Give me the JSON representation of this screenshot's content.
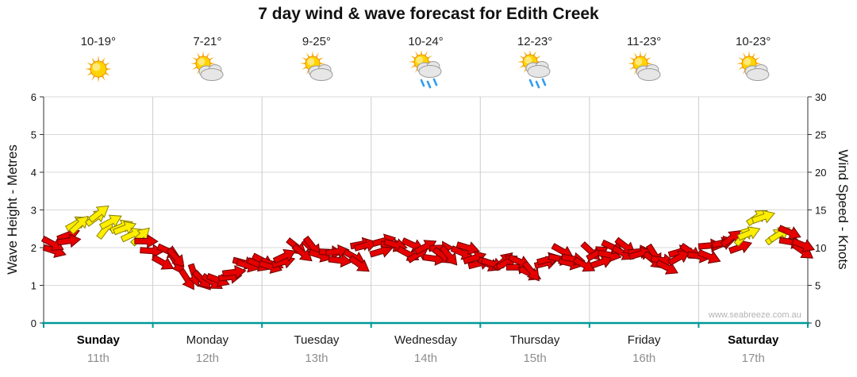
{
  "title": "7 day wind & wave forecast for Edith Creek",
  "watermark": "www.seabreeze.com.au",
  "axes": {
    "left": {
      "label": "Wave Height - Metres",
      "ticks": [
        0,
        1,
        2,
        3,
        4,
        5,
        6
      ]
    },
    "right": {
      "label": "Wind Speed - Knots",
      "ticks": [
        0,
        5,
        10,
        15,
        20,
        25,
        30
      ]
    }
  },
  "days": [
    {
      "name": "Sunday",
      "date": "11th",
      "temp": "10-19°",
      "icon": "sunny",
      "bold": true
    },
    {
      "name": "Monday",
      "date": "12th",
      "temp": "7-21°",
      "icon": "partly-cloudy",
      "bold": false
    },
    {
      "name": "Tuesday",
      "date": "13th",
      "temp": "9-25°",
      "icon": "partly-cloudy",
      "bold": false
    },
    {
      "name": "Wednesday",
      "date": "14th",
      "temp": "10-24°",
      "icon": "showers",
      "bold": false
    },
    {
      "name": "Thursday",
      "date": "15th",
      "temp": "12-23°",
      "icon": "showers",
      "bold": false
    },
    {
      "name": "Friday",
      "date": "16th",
      "temp": "11-23°",
      "icon": "partly-cloudy",
      "bold": false
    },
    {
      "name": "Saturday",
      "date": "17th",
      "temp": "10-23°",
      "icon": "partly-cloudy",
      "bold": true
    }
  ],
  "chart_data": {
    "type": "wind-arrow-series",
    "categories": [
      "Sunday 11th",
      "Monday 12th",
      "Tuesday 13th",
      "Wednesday 14th",
      "Thursday 15th",
      "Friday 16th",
      "Saturday 17th"
    ],
    "points_per_day": 8,
    "ylim_left_metres": [
      0,
      6
    ],
    "ylim_right_knots": [
      0,
      30
    ],
    "grid": true,
    "axis_color": "#009999",
    "arrow_colors": {
      "normal": "#e60000",
      "strong": "#ffee00"
    },
    "strong_threshold_knots": 12,
    "wind_speed_knots": [
      10,
      11,
      12.5,
      14,
      13.5,
      13,
      12.5,
      10,
      9,
      8,
      6.5,
      5.5,
      6,
      7,
      7.5,
      8,
      8.5,
      9,
      9.5,
      10,
      9.5,
      9,
      8.5,
      10,
      10,
      10.5,
      10,
      9.5,
      9,
      9.5,
      9,
      8.5,
      8.5,
      9,
      8,
      7.5,
      8,
      8.5,
      8,
      8.5,
      9,
      9.5,
      10,
      9,
      8,
      7.5,
      8.5,
      9,
      9.5,
      10,
      11,
      12.5,
      13,
      12.5,
      11.5,
      10.5
    ],
    "wind_direction_deg": [
      20,
      -15,
      -35,
      -30,
      -40,
      -25,
      -30,
      10,
      35,
      50,
      70,
      40,
      20,
      -10,
      15,
      30,
      10,
      -20,
      25,
      40,
      15,
      -5,
      30,
      -25,
      -10,
      15,
      35,
      -20,
      5,
      45,
      20,
      -15,
      25,
      -30,
      10,
      40,
      -15,
      20,
      5,
      35,
      -20,
      10,
      30,
      -10,
      45,
      15,
      -25,
      20,
      10,
      -15,
      -30,
      -35,
      -25,
      -40,
      15,
      25
    ]
  }
}
